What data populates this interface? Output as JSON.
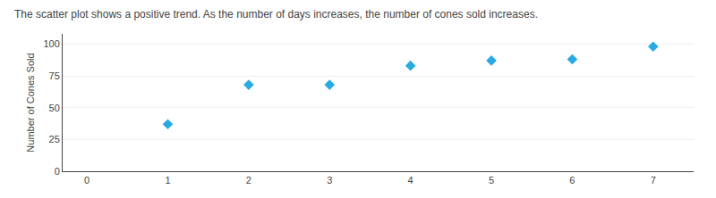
{
  "chart_data": {
    "type": "scatter",
    "title": "The scatter plot shows a positive trend. As the number of days increases, the number of cones sold increases.",
    "ylabel": "Number of Cones Sold",
    "x": [
      1,
      2,
      3,
      4,
      5,
      6,
      7
    ],
    "values": [
      37,
      68,
      68,
      83,
      87,
      88,
      98
    ],
    "color": "#29ABE2",
    "marker": "diamond",
    "xlim": [
      -0.3,
      7.5
    ],
    "ylim": [
      0,
      108
    ],
    "xticks": [
      0,
      1,
      2,
      3,
      4,
      5,
      6,
      7
    ],
    "yticks": [
      0,
      25,
      50,
      75,
      100
    ],
    "grid": true
  }
}
